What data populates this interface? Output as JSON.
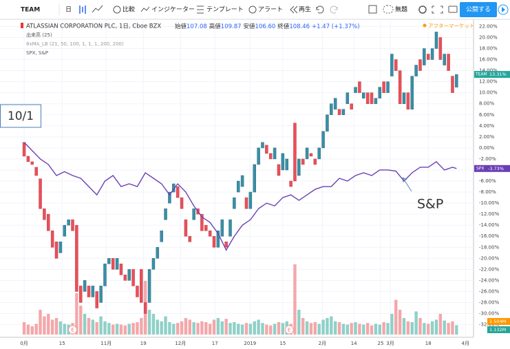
{
  "toolbar": {
    "symbol": "TEAM",
    "interval": "日",
    "compare": "比較",
    "indicators": "インジケーター",
    "templates": "テンプレート",
    "alert": "アラート",
    "replay": "再生",
    "layout": "無題",
    "publish": "公開する"
  },
  "chart_data": {
    "type": "candlestick",
    "title": "ATLASSIAN CORPORATION PLC, 1日, Cboe BZX",
    "ohlc_header": [
      {
        "label": "始値",
        "value": "107.08"
      },
      {
        "label": "高値",
        "value": "109.87"
      },
      {
        "label": "安値",
        "value": "106.60"
      },
      {
        "label": "終値",
        "value": "108.46"
      }
    ],
    "change": "+1.47 (+1.37%)",
    "session": "アフターマーケット",
    "legend": [
      "出来高 (25)",
      "8xMA_LB (21, 50, 100, 1, 1, 1, 200, 200)",
      "SPX, S&P"
    ],
    "symbol": "TEAM",
    "open": [
      1,
      -1.5,
      -2.5,
      -3.5,
      -5.6,
      -11,
      -12,
      -15,
      -17,
      -19,
      -16,
      -14,
      -13,
      -14,
      -25,
      -26,
      -25,
      -27,
      -26,
      -28,
      -25,
      -21,
      -20,
      -22,
      -21,
      -23,
      -24,
      -22,
      -25,
      -22,
      -28,
      -28,
      -22,
      -20,
      -17,
      -13,
      -10,
      -8,
      -7,
      -9,
      -13,
      -16,
      -13,
      -11,
      -12,
      -14,
      -15,
      -16,
      -18,
      -16,
      -17,
      -16,
      -11,
      -8,
      -7,
      -9,
      -11,
      -8,
      -3,
      0,
      0.5,
      -1,
      -2,
      -3,
      -4,
      -4,
      -6,
      4.5,
      -5,
      -2,
      -2,
      -1,
      -2,
      -2,
      0,
      3,
      6,
      7,
      7,
      6,
      8,
      8,
      10,
      12,
      9,
      10,
      10,
      8,
      9,
      12,
      10,
      13,
      16,
      14,
      8,
      10,
      7,
      13,
      16,
      15,
      17,
      16,
      18,
      20,
      15,
      17,
      13,
      11
    ],
    "close": [
      -1.5,
      -2.5,
      -3,
      -5,
      -11,
      -13,
      -15,
      -18,
      -20,
      -17,
      -14,
      -13,
      -15,
      -26,
      -28,
      -24,
      -27,
      -25,
      -29,
      -25,
      -21,
      -20,
      -22,
      -20,
      -23,
      -24,
      -22,
      -25,
      -27,
      -28,
      -30,
      -22,
      -20,
      -18,
      -15,
      -11,
      -8,
      -6.5,
      -9,
      -11,
      -16,
      -17,
      -11,
      -12,
      -15,
      -15,
      -16,
      -18,
      -15,
      -13,
      -18,
      -13,
      -9,
      -6,
      -5,
      -11,
      -8,
      -3,
      0,
      1,
      -1,
      -2,
      0,
      -5,
      -1,
      -2,
      -7,
      -6,
      -2,
      -3,
      0,
      -1.5,
      -3,
      0,
      3,
      6,
      8,
      9,
      6,
      7,
      10,
      7,
      11,
      10,
      10,
      8,
      8,
      9,
      11,
      10,
      12,
      17,
      14,
      8,
      10,
      7,
      13,
      15,
      14,
      18,
      16,
      18,
      21,
      16,
      17,
      14,
      10,
      13.31
    ],
    "up_color": "#3b8ea5",
    "down_color": "#e8505b",
    "last_label": "13.31%",
    "volume": [
      1.5,
      1.2,
      1.0,
      1.3,
      3.0,
      2.2,
      2.5,
      1.8,
      2.0,
      1.6,
      1.3,
      1.2,
      1.4,
      5.0,
      3.5,
      2.5,
      2.0,
      1.8,
      1.5,
      2.2,
      1.6,
      1.4,
      1.2,
      1.3,
      1.2,
      1.1,
      1.3,
      1.4,
      1.5,
      2.0,
      6.5,
      3.0,
      2.5,
      1.8,
      1.6,
      2.2,
      1.5,
      1.3,
      1.4,
      1.6,
      2.0,
      1.8,
      1.5,
      1.4,
      1.6,
      1.5,
      1.3,
      1.8,
      2.0,
      1.6,
      1.9,
      1.4,
      1.5,
      1.3,
      1.2,
      1.4,
      1.3,
      1.6,
      1.8,
      1.4,
      1.2,
      1.1,
      1.3,
      1.5,
      1.4,
      1.6,
      1.3,
      8.5,
      3.0,
      2.0,
      1.6,
      1.4,
      1.5,
      1.3,
      1.8,
      2.0,
      2.2,
      1.6,
      1.5,
      1.3,
      1.2,
      1.4,
      1.5,
      1.3,
      1.2,
      1.4,
      1.1,
      1.3,
      1.2,
      1.5,
      1.4,
      2.5,
      4.2,
      3.0,
      2.0,
      1.6,
      1.5,
      2.8,
      2.0,
      1.4,
      1.3,
      1.6,
      1.8,
      2.5,
      1.7,
      1.4,
      1.6,
      1.132
    ],
    "volume_up_color": "#8fd0c8",
    "volume_down_color": "#f4a7a9",
    "volume_label": "1.132M",
    "volume_ma_label": "1.504M",
    "series": [
      {
        "name": "SPX",
        "color": "#6a3fb5",
        "value_label": "-3.73%",
        "x": [
          0,
          2,
          4,
          6,
          8,
          10,
          12,
          14,
          16,
          18,
          20,
          22,
          24,
          26,
          28,
          30,
          32,
          34,
          36,
          38,
          40,
          42,
          44,
          46,
          48,
          50,
          52,
          54,
          56,
          58,
          60,
          62,
          64,
          66,
          68,
          70,
          72,
          74,
          76,
          78,
          80,
          82,
          84,
          86,
          88,
          90,
          92,
          94,
          96,
          98,
          100,
          102,
          104,
          106,
          107
        ],
        "values": [
          1,
          -0.5,
          -2,
          -3,
          -5,
          -4.3,
          -5,
          -5.5,
          -7,
          -8.5,
          -6,
          -5,
          -7,
          -6.5,
          -7,
          -4.5,
          -5.5,
          -6.5,
          -8.5,
          -6.5,
          -8,
          -10.5,
          -12.5,
          -13.5,
          -15.5,
          -18.5,
          -16,
          -14,
          -13,
          -11,
          -10,
          -10.5,
          -9,
          -8.5,
          -9.5,
          -8.5,
          -7.5,
          -7,
          -7,
          -5.5,
          -6,
          -5,
          -4.5,
          -5,
          -4,
          -4,
          -4.2,
          -6,
          -4.5,
          -3.5,
          -3.5,
          -2.5,
          -4,
          -3.5,
          -3.73
        ]
      }
    ],
    "ylim": [
      -34.3,
      23.3
    ],
    "yticks": [
      {
        "value": 22,
        "label": "22.00%"
      },
      {
        "value": 20,
        "label": "20.00%"
      },
      {
        "value": 18,
        "label": "18.00%"
      },
      {
        "value": 16,
        "label": "16.00%"
      },
      {
        "value": 14,
        "label": "14.00%"
      },
      {
        "value": 12,
        "label": "12.00%"
      },
      {
        "value": 10,
        "label": "10.00%"
      },
      {
        "value": 8,
        "label": "8.00%"
      },
      {
        "value": 6,
        "label": "6.00%"
      },
      {
        "value": 4,
        "label": "4.00%"
      },
      {
        "value": 2,
        "label": "2.00%"
      },
      {
        "value": 0,
        "label": "0.00%"
      },
      {
        "value": -2,
        "label": "-2.00%"
      },
      {
        "value": -4,
        "label": "-4.00%"
      },
      {
        "value": -6,
        "label": "-6.00%"
      },
      {
        "value": -8,
        "label": "-8.00%"
      },
      {
        "value": -10,
        "label": "-10.00%"
      },
      {
        "value": -12,
        "label": "-12.00%"
      },
      {
        "value": -14,
        "label": "-14.00%"
      },
      {
        "value": -16,
        "label": "-16.00%"
      },
      {
        "value": -18,
        "label": "-18.00%"
      },
      {
        "value": -20,
        "label": "-20.00%"
      },
      {
        "value": -22,
        "label": "-22.00%"
      },
      {
        "value": -24,
        "label": "-24.00%"
      },
      {
        "value": -26,
        "label": "-26.00%"
      },
      {
        "value": -28,
        "label": "-28.00%"
      },
      {
        "value": -30,
        "label": "-30.00%"
      },
      {
        "value": -32,
        "label": "-32.00%"
      }
    ],
    "xlim": [
      -1.2,
      111.2
    ],
    "xticks": [
      {
        "value": 0,
        "label": "0月"
      },
      {
        "value": 9.4,
        "label": "15"
      },
      {
        "value": 20.3,
        "label": "11月"
      },
      {
        "value": 29.5,
        "label": "19"
      },
      {
        "value": 38.7,
        "label": "12月"
      },
      {
        "value": 47.2,
        "label": "17"
      },
      {
        "value": 55.9,
        "label": "2019"
      },
      {
        "value": 64,
        "label": "15"
      },
      {
        "value": 73.8,
        "label": "2月"
      },
      {
        "value": 81.6,
        "label": "14"
      },
      {
        "value": 88.2,
        "label": "25"
      },
      {
        "value": 90.6,
        "label": "3月"
      },
      {
        "value": 100,
        "label": "18"
      },
      {
        "value": 109.2,
        "label": "4月"
      }
    ],
    "events": [
      {
        "x": 12,
        "label": "E"
      },
      {
        "x": 65.6,
        "label": "E"
      }
    ],
    "annotations": [
      "10/1",
      "S&P"
    ]
  }
}
